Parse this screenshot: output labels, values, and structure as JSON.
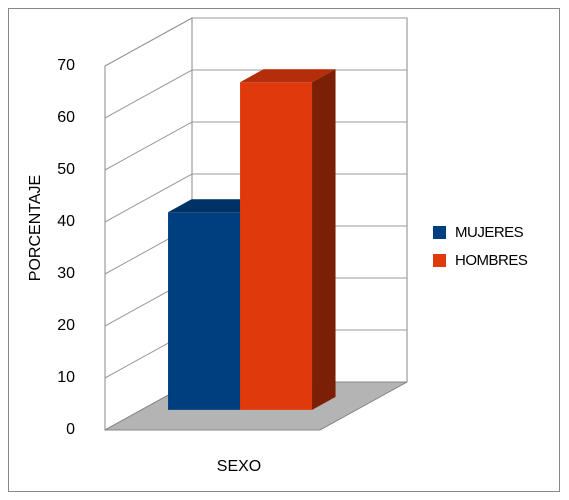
{
  "chart_data": {
    "type": "bar3d",
    "ylabel": "PORCENTAJE",
    "categories": [
      "SEXO"
    ],
    "series": [
      {
        "name": "MUJERES",
        "color": "#003f7f",
        "values": [
          38
        ]
      },
      {
        "name": "HOMBRES",
        "color": "#e03a0c",
        "values": [
          63
        ]
      }
    ],
    "ylim": [
      0,
      70
    ],
    "yticks": [
      0,
      10,
      20,
      30,
      40,
      50,
      60,
      70
    ],
    "grid": true,
    "legend": "right"
  }
}
